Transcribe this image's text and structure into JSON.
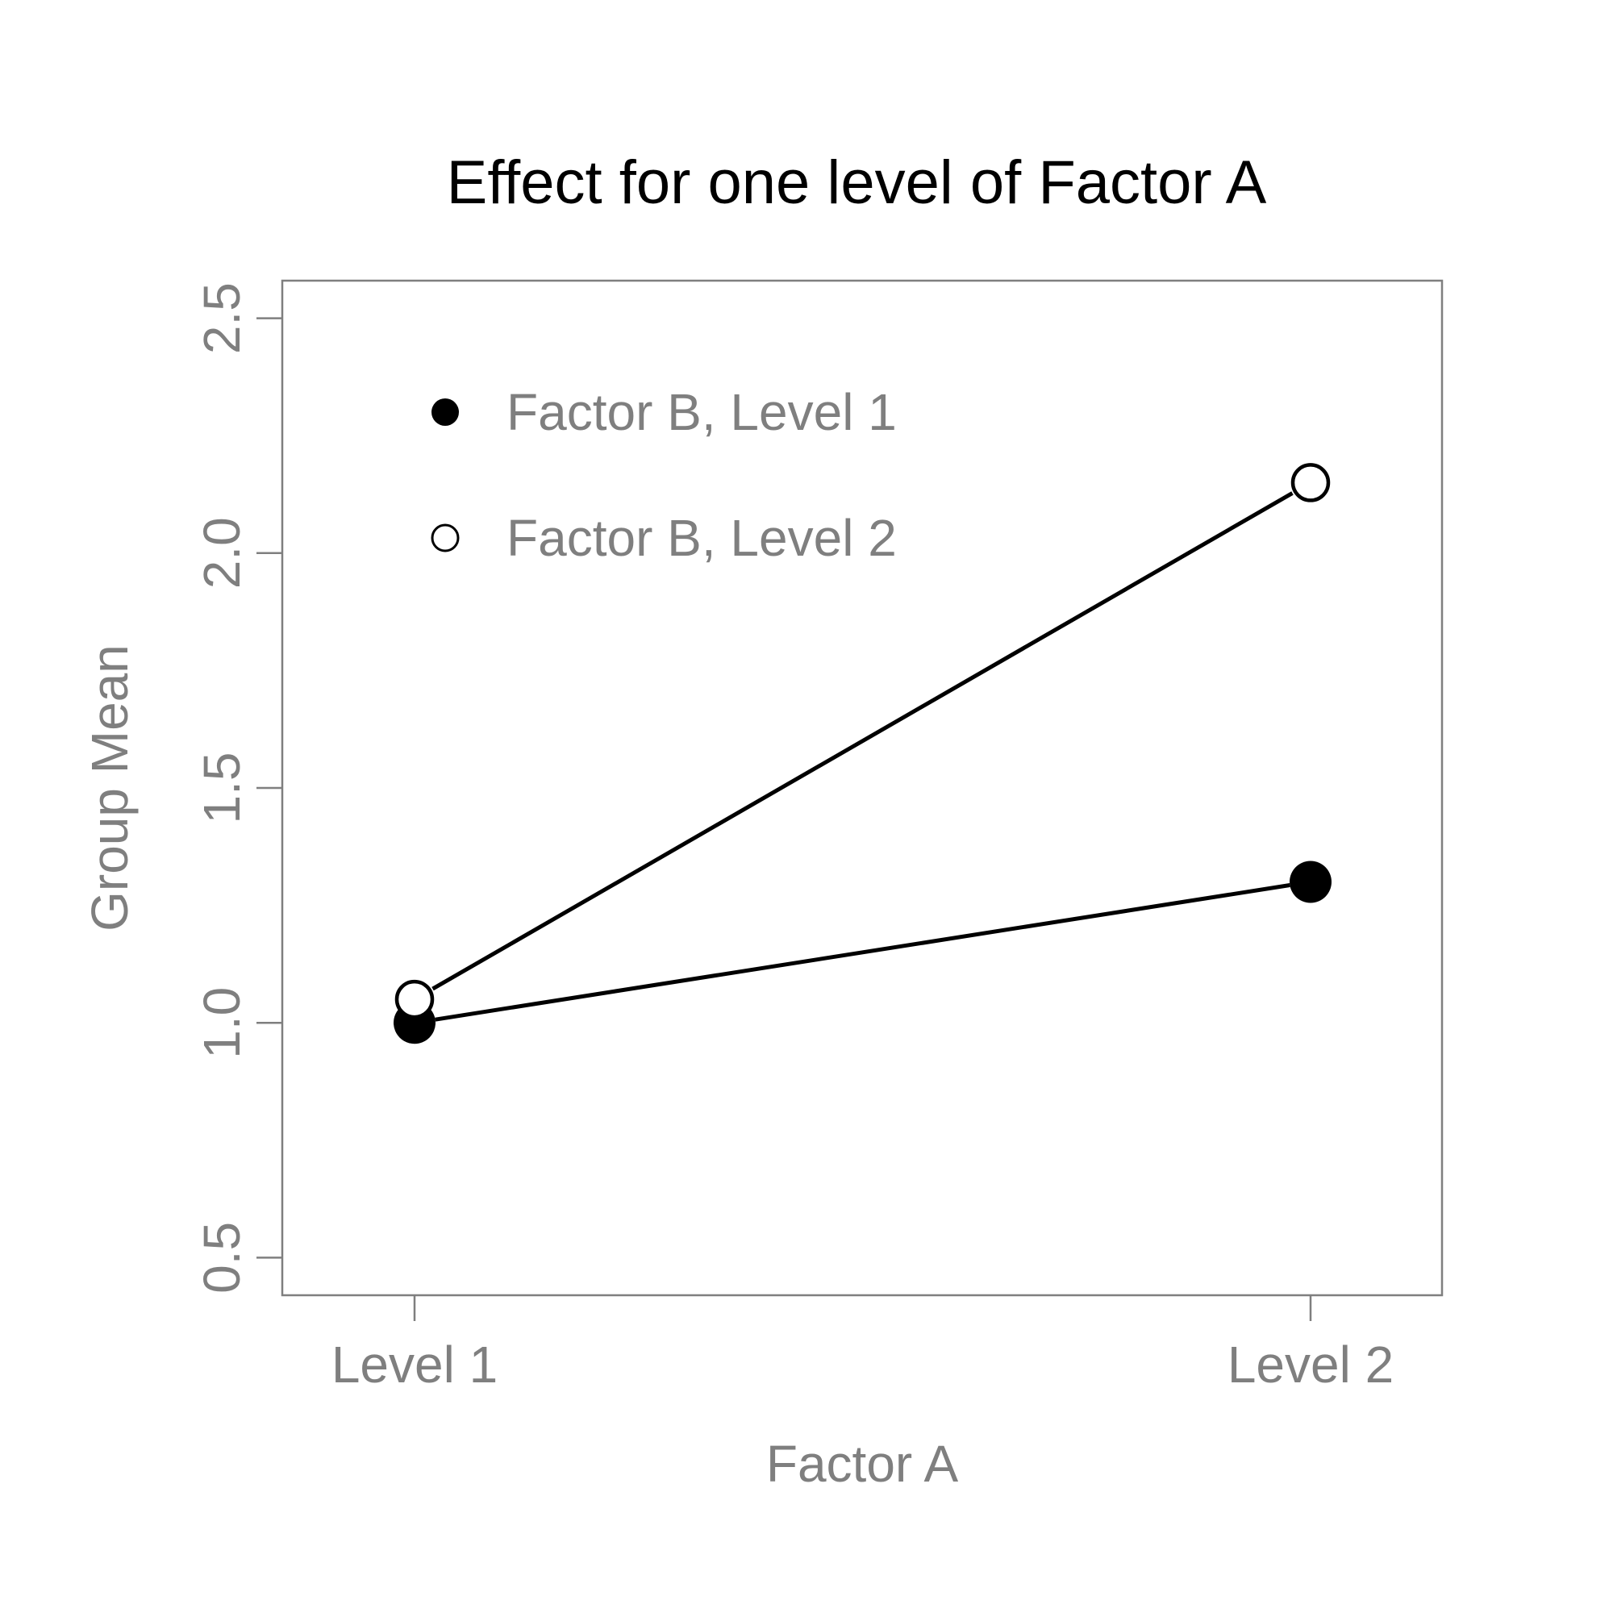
{
  "chart_data": {
    "type": "line",
    "title": "Effect for one level of Factor A",
    "xlabel": "Factor A",
    "ylabel": "Group Mean",
    "categories": [
      "Level 1",
      "Level 2"
    ],
    "ylim": [
      0.42,
      2.58
    ],
    "yticks": [
      "0.5",
      "1.0",
      "1.5",
      "2.0",
      "2.5"
    ],
    "grid": false,
    "legend_position": "top-left",
    "series": [
      {
        "name": "Factor B, Level 1",
        "values": [
          1.0,
          1.3
        ],
        "marker": "filled",
        "color": "#000000"
      },
      {
        "name": "Factor B, Level 2",
        "values": [
          1.05,
          2.15
        ],
        "marker": "open",
        "color": "#000000"
      }
    ]
  }
}
